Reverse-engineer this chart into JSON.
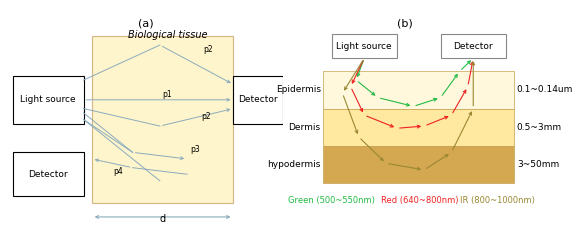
{
  "panel_a": {
    "title": "(a)",
    "bio_tissue_label": "Biological tissue",
    "bio_color": "#FFF5CC",
    "bio_edge_color": "#D4B483",
    "light_box_label": "Light source",
    "detector_top_label": "Detector",
    "detector_bot_label": "Detector",
    "d_label": "d",
    "arrow_color": "#8AABBC"
  },
  "panel_b": {
    "title": "(b)",
    "light_label": "Light source",
    "detector_label": "Detector",
    "layer_labels": [
      "Epidermis",
      "Dermis",
      "hypodermis"
    ],
    "layer_ranges": [
      "0.1~0.14um",
      "0.5~3mm",
      "3~50mm"
    ],
    "green_label": "Green (500~550nm)",
    "red_label": "Red (640~800nm)",
    "ir_label": "IR (800~1000nm)",
    "green_color": "#22BB44",
    "red_color": "#EE2222",
    "ir_color": "#998833",
    "epidermis_color": "#FFF8DD",
    "dermis_color": "#FFE9A0",
    "hypodermis_color": "#D4A850",
    "border_color": "#C8A050"
  }
}
